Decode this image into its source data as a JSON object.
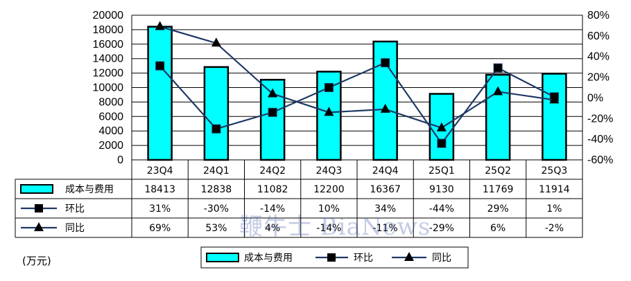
{
  "chart_data": {
    "type": "bar",
    "categories": [
      "23Q4",
      "24Q1",
      "24Q2",
      "24Q3",
      "24Q4",
      "25Q1",
      "25Q2",
      "25Q3"
    ],
    "unit": "(万元)",
    "series": [
      {
        "name": "成本与费用",
        "kind": "bar",
        "axis": "left",
        "values": [
          18413,
          12838,
          11082,
          12200,
          16367,
          9130,
          11769,
          11914
        ],
        "labels": [
          "18413",
          "12838",
          "11082",
          "12200",
          "16367",
          "9130",
          "11769",
          "11914"
        ],
        "color": "#00FFFF"
      },
      {
        "name": "环比",
        "kind": "line",
        "marker": "square",
        "axis": "right",
        "values": [
          31,
          -30,
          -14,
          10,
          34,
          -44,
          29,
          1
        ],
        "labels": [
          "31%",
          "-30%",
          "-14%",
          "10%",
          "34%",
          "-44%",
          "29%",
          "1%"
        ],
        "color": "#1F3864"
      },
      {
        "name": "同比",
        "kind": "line",
        "marker": "triangle",
        "axis": "right",
        "values": [
          69,
          53,
          4,
          -14,
          -11,
          -29,
          6,
          -2
        ],
        "labels": [
          "69%",
          "53%",
          "4%",
          "-14%",
          "-11%",
          "-29%",
          "6%",
          "-2%"
        ],
        "color": "#1F3864"
      }
    ],
    "y_left": {
      "min": 0,
      "max": 20000,
      "step": 2000,
      "ticks": [
        "0",
        "2000",
        "4000",
        "6000",
        "8000",
        "10000",
        "12000",
        "14000",
        "16000",
        "18000",
        "20000"
      ]
    },
    "y_right": {
      "min": -60,
      "max": 80,
      "step": 20,
      "ticks": [
        "-60%",
        "-40%",
        "-20%",
        "0%",
        "20%",
        "40%",
        "60%",
        "80%"
      ]
    },
    "grid": true,
    "legend_position": "bottom",
    "data_table": true
  },
  "watermark": "鞭牛士 BiaNews",
  "colors": {
    "bar_fill": "#00FFFF",
    "line": "#1F3864",
    "grid": "#000000"
  }
}
